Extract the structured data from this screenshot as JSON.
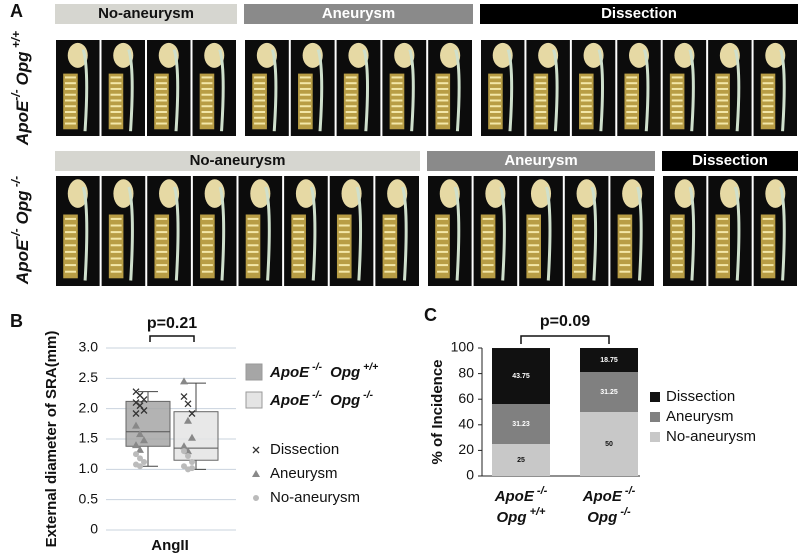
{
  "panel_labels": [
    "A",
    "B",
    "C"
  ],
  "panel_a": {
    "rows": [
      {
        "label": [
          "ApoE",
          "-/-",
          "Opg",
          " +/+"
        ],
        "groups": [
          {
            "label": "No-aneurysm"
          },
          {
            "label": "Aneurysm"
          },
          {
            "label": "Dissection"
          }
        ]
      },
      {
        "label": [
          "ApoE",
          "-/-",
          "Opg",
          " -/-"
        ],
        "groups": [
          {
            "label": "No-aneurysm"
          },
          {
            "label": "Aneurysm"
          },
          {
            "label": "Dissection"
          }
        ]
      }
    ]
  },
  "chart_data": [
    {
      "type": "box",
      "ylabel": "External diameter of SRA(mm)",
      "category": "AngII",
      "annotation": "p=0.21",
      "ylim": [
        0,
        3
      ],
      "yticks": [
        0,
        0.5,
        {
          "value": 1,
          "label": "1.0"
        },
        1.5,
        {
          "value": 2,
          "label": "2.0"
        },
        2.5,
        {
          "value": 3,
          "label": "3.0"
        }
      ],
      "grid": true,
      "series": [
        {
          "name": [
            "ApoE",
            " -/-",
            " Opg",
            " +/+"
          ],
          "color": "#a6a6a6",
          "whislo": 1.05,
          "q1": 1.38,
          "med": 1.62,
          "q3": 2.12,
          "whishi": 2.28
        },
        {
          "name": [
            "ApoE",
            " -/-",
            " Opg",
            " -/-"
          ],
          "color": "#e4e4e4",
          "whislo": 1.0,
          "q1": 1.15,
          "med": 1.35,
          "q3": 1.95,
          "whishi": 2.42
        }
      ],
      "points": [
        {
          "name": "Dissection",
          "marker": "x",
          "color": "#333333",
          "values": [
            [
              2.28,
              2.22,
              2.15,
              2.1,
              2.05,
              1.97,
              1.92
            ],
            [
              2.2,
              2.08,
              1.92
            ]
          ]
        },
        {
          "name": "Aneurysm",
          "marker": "triangle",
          "color": "#888888",
          "values": [
            [
              1.72,
              1.58,
              1.48,
              1.4,
              1.32
            ],
            [
              2.45,
              1.8,
              1.52,
              1.38,
              1.3
            ]
          ]
        },
        {
          "name": "No-aneurysm",
          "marker": "circle",
          "color": "#bbbbbb",
          "values": [
            [
              1.25,
              1.18,
              1.12,
              1.08,
              1.05
            ],
            [
              1.3,
              1.22,
              1.12,
              1.05,
              1.0,
              1.02
            ]
          ]
        }
      ]
    },
    {
      "type": "stacked_bar",
      "ylabel": "% of Incidence",
      "annotation": "p=0.09",
      "ylim": [
        0,
        100
      ],
      "yticks": [
        0,
        20,
        40,
        60,
        80,
        100
      ],
      "categories": [
        [
          "ApoE",
          " -/-",
          "Opg",
          " +/+"
        ],
        [
          "ApoE",
          " -/-",
          "Opg",
          " -/-"
        ]
      ],
      "series": [
        {
          "name": "Dissection",
          "color": "#111111",
          "values": [
            43.75,
            18.75
          ],
          "value_labels": [
            "43.75",
            "18.75"
          ]
        },
        {
          "name": "Aneurysm",
          "color": "#808080",
          "values": [
            31.23,
            31.25
          ],
          "value_labels": [
            "31.23",
            "31.25"
          ]
        },
        {
          "name": "No-aneurysm",
          "color": "#c8c8c8",
          "values": [
            25,
            50
          ],
          "value_labels": [
            "25",
            "50"
          ]
        }
      ]
    }
  ]
}
